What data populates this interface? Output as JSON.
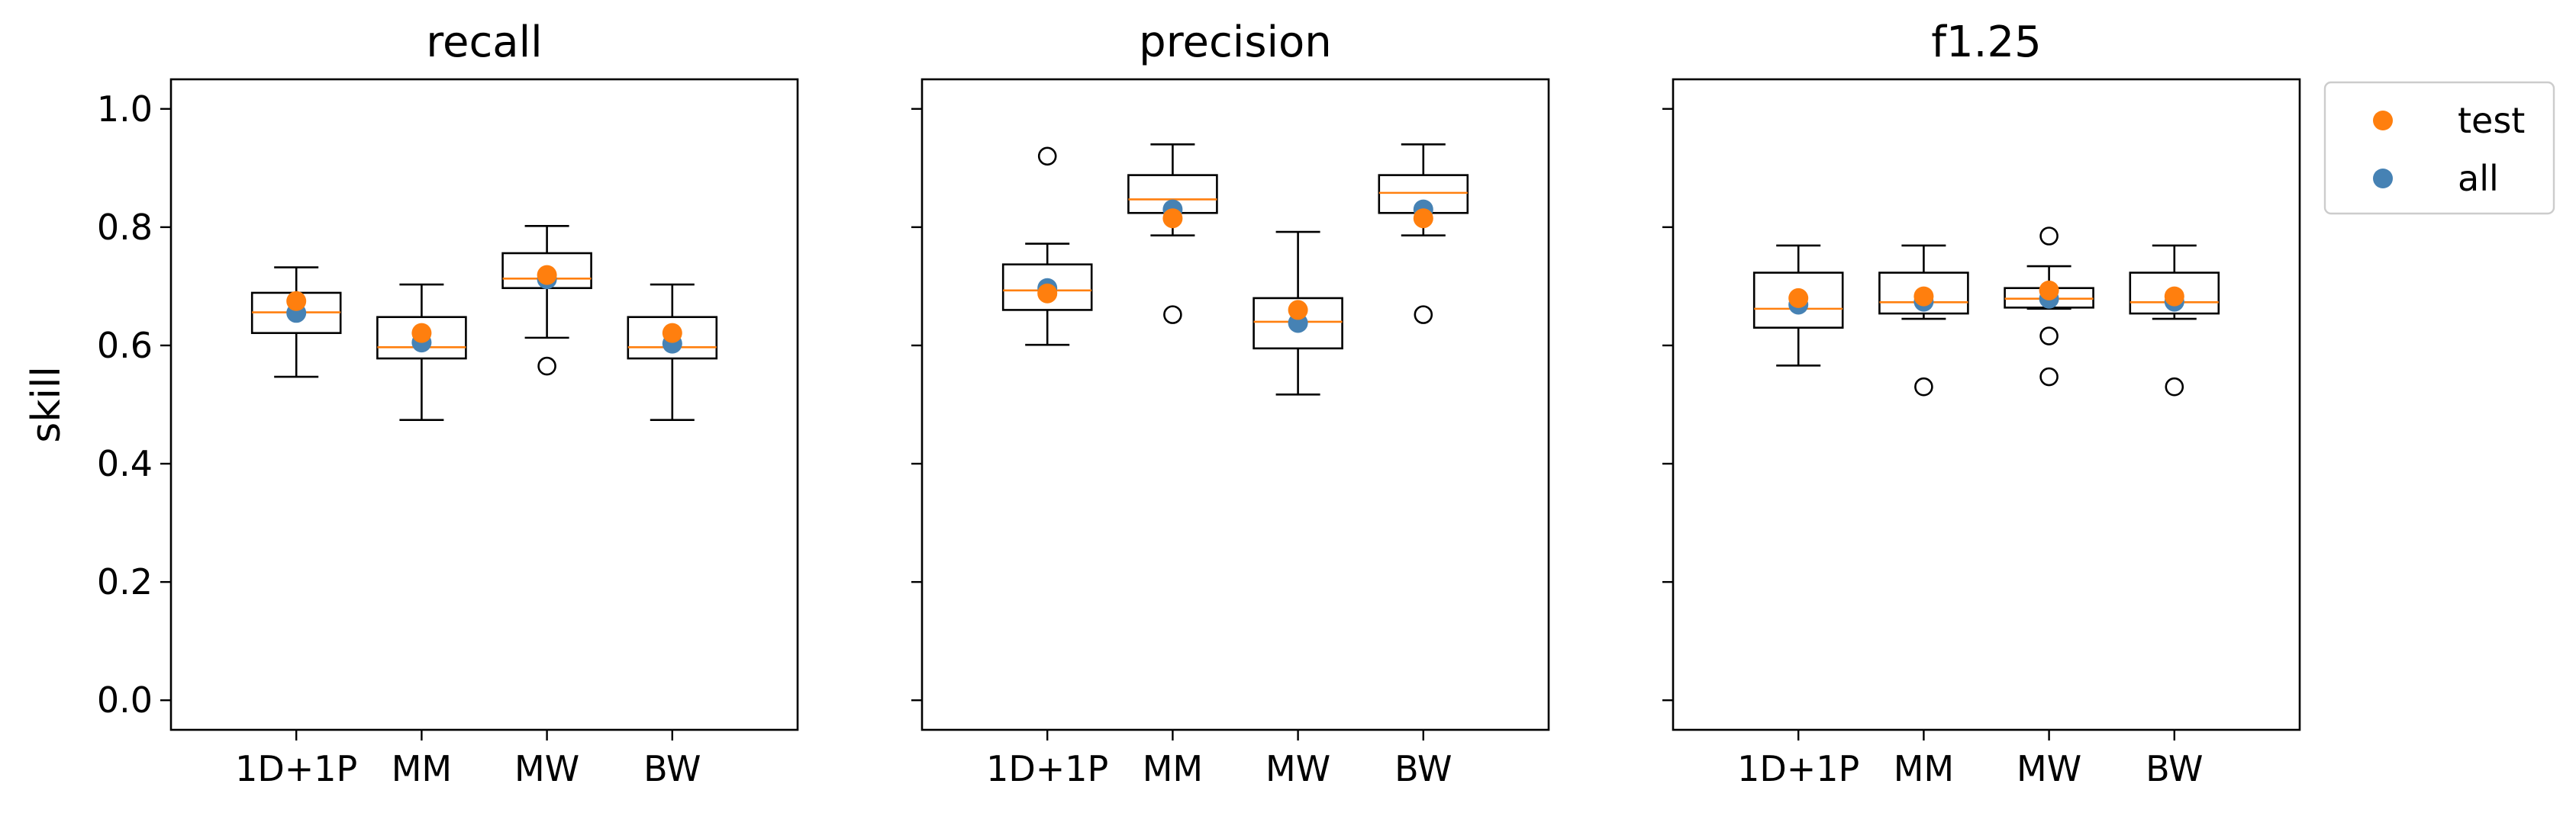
{
  "chart_data": [
    {
      "type": "box",
      "title": "recall",
      "ylabel": "skill",
      "ylim": [
        -0.05,
        1.05
      ],
      "yticks": [
        "0.0",
        "0.2",
        "0.4",
        "0.6",
        "0.8",
        "1.0"
      ],
      "categories": [
        "1D+1P",
        "MM",
        "MW",
        "BW"
      ],
      "boxes": [
        {
          "whislo": 0.547,
          "q1": 0.621,
          "med": 0.656,
          "q3": 0.689,
          "whishi": 0.732,
          "fliers": []
        },
        {
          "whislo": 0.474,
          "q1": 0.578,
          "med": 0.597,
          "q3": 0.648,
          "whishi": 0.703,
          "fliers": []
        },
        {
          "whislo": 0.613,
          "q1": 0.697,
          "med": 0.713,
          "q3": 0.756,
          "whishi": 0.802,
          "fliers": [
            0.565
          ]
        },
        {
          "whislo": 0.474,
          "q1": 0.578,
          "med": 0.597,
          "q3": 0.648,
          "whishi": 0.703,
          "fliers": []
        }
      ],
      "points": {
        "test": [
          0.675,
          0.621,
          0.719,
          0.621
        ],
        "all": [
          0.655,
          0.605,
          0.712,
          0.603
        ]
      }
    },
    {
      "type": "box",
      "title": "precision",
      "ylim": [
        -0.05,
        1.05
      ],
      "categories": [
        "1D+1P",
        "MM",
        "MW",
        "BW"
      ],
      "boxes": [
        {
          "whislo": 0.601,
          "q1": 0.66,
          "med": 0.693,
          "q3": 0.737,
          "whishi": 0.772,
          "fliers": [
            0.92
          ]
        },
        {
          "whislo": 0.786,
          "q1": 0.824,
          "med": 0.847,
          "q3": 0.888,
          "whishi": 0.94,
          "fliers": [
            0.652
          ]
        },
        {
          "whislo": 0.517,
          "q1": 0.595,
          "med": 0.64,
          "q3": 0.68,
          "whishi": 0.792,
          "fliers": []
        },
        {
          "whislo": 0.786,
          "q1": 0.824,
          "med": 0.858,
          "q3": 0.888,
          "whishi": 0.94,
          "fliers": [
            0.652
          ]
        }
      ],
      "points": {
        "test": [
          0.688,
          0.815,
          0.66,
          0.815
        ],
        "all": [
          0.697,
          0.83,
          0.638,
          0.83
        ]
      }
    },
    {
      "type": "box",
      "title": "f1.25",
      "ylim": [
        -0.05,
        1.05
      ],
      "categories": [
        "1D+1P",
        "MM",
        "MW",
        "BW"
      ],
      "boxes": [
        {
          "whislo": 0.566,
          "q1": 0.63,
          "med": 0.662,
          "q3": 0.723,
          "whishi": 0.769,
          "fliers": []
        },
        {
          "whislo": 0.645,
          "q1": 0.654,
          "med": 0.673,
          "q3": 0.723,
          "whishi": 0.769,
          "fliers": [
            0.53
          ]
        },
        {
          "whislo": 0.662,
          "q1": 0.664,
          "med": 0.679,
          "q3": 0.697,
          "whishi": 0.734,
          "fliers": [
            0.785,
            0.616,
            0.547
          ]
        },
        {
          "whislo": 0.645,
          "q1": 0.654,
          "med": 0.673,
          "q3": 0.723,
          "whishi": 0.769,
          "fliers": [
            0.53
          ]
        }
      ],
      "points": {
        "test": [
          0.68,
          0.683,
          0.693,
          0.683
        ],
        "all": [
          0.669,
          0.674,
          0.679,
          0.674
        ]
      }
    }
  ],
  "legend": {
    "placement": "upper right, outside axes",
    "entries": [
      {
        "key": "test",
        "label": "test",
        "color": "#ff7f0e"
      },
      {
        "key": "all",
        "label": "all",
        "color": "#4682b4"
      }
    ]
  },
  "colors": {
    "median": "#ff7f0e",
    "test": "#ff7f0e",
    "all": "#4682b4",
    "box": "#000000"
  }
}
